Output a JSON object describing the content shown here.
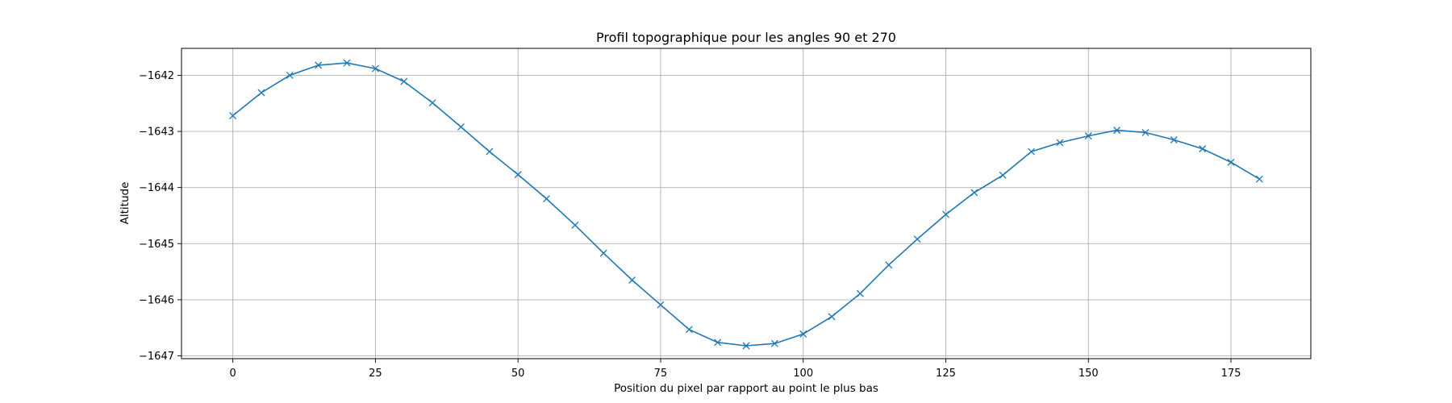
{
  "chart_data": {
    "type": "line",
    "title": "Profil topographique pour les angles 90 et 270",
    "xlabel": "Position du pixel par rapport au point le plus bas",
    "ylabel": "Altitude",
    "xlim": [
      -9,
      189
    ],
    "ylim": [
      -1647.05,
      -1641.52
    ],
    "xticks": [
      0,
      25,
      50,
      75,
      100,
      125,
      150,
      175
    ],
    "yticks": [
      -1647,
      -1646,
      -1645,
      -1644,
      -1643,
      -1642
    ],
    "xtick_labels": [
      "0",
      "25",
      "50",
      "75",
      "100",
      "125",
      "150",
      "175"
    ],
    "ytick_labels": [
      "−1647",
      "−1646",
      "−1645",
      "−1644",
      "−1643",
      "−1642"
    ],
    "grid": true,
    "marker": "x",
    "color": "#1f77b4",
    "series": [
      {
        "x": [
          0,
          5,
          10,
          15,
          20,
          25,
          30,
          35,
          40,
          45,
          50,
          55,
          60,
          65,
          70,
          75,
          80,
          85,
          90,
          95,
          100,
          105,
          110,
          115,
          120,
          125,
          130,
          135,
          140,
          145,
          150,
          155,
          160,
          165,
          170,
          175,
          180
        ],
        "y": [
          -1642.72,
          -1642.31,
          -1642.0,
          -1641.82,
          -1641.78,
          -1641.88,
          -1642.11,
          -1642.49,
          -1642.92,
          -1643.36,
          -1643.77,
          -1644.2,
          -1644.67,
          -1645.17,
          -1645.65,
          -1646.09,
          -1646.53,
          -1646.76,
          -1646.82,
          -1646.78,
          -1646.61,
          -1646.3,
          -1645.89,
          -1645.38,
          -1644.92,
          -1644.48,
          -1644.09,
          -1643.78,
          -1643.36,
          -1643.2,
          -1643.08,
          -1642.98,
          -1643.02,
          -1643.15,
          -1643.31,
          -1643.55,
          -1643.85
        ]
      }
    ]
  }
}
